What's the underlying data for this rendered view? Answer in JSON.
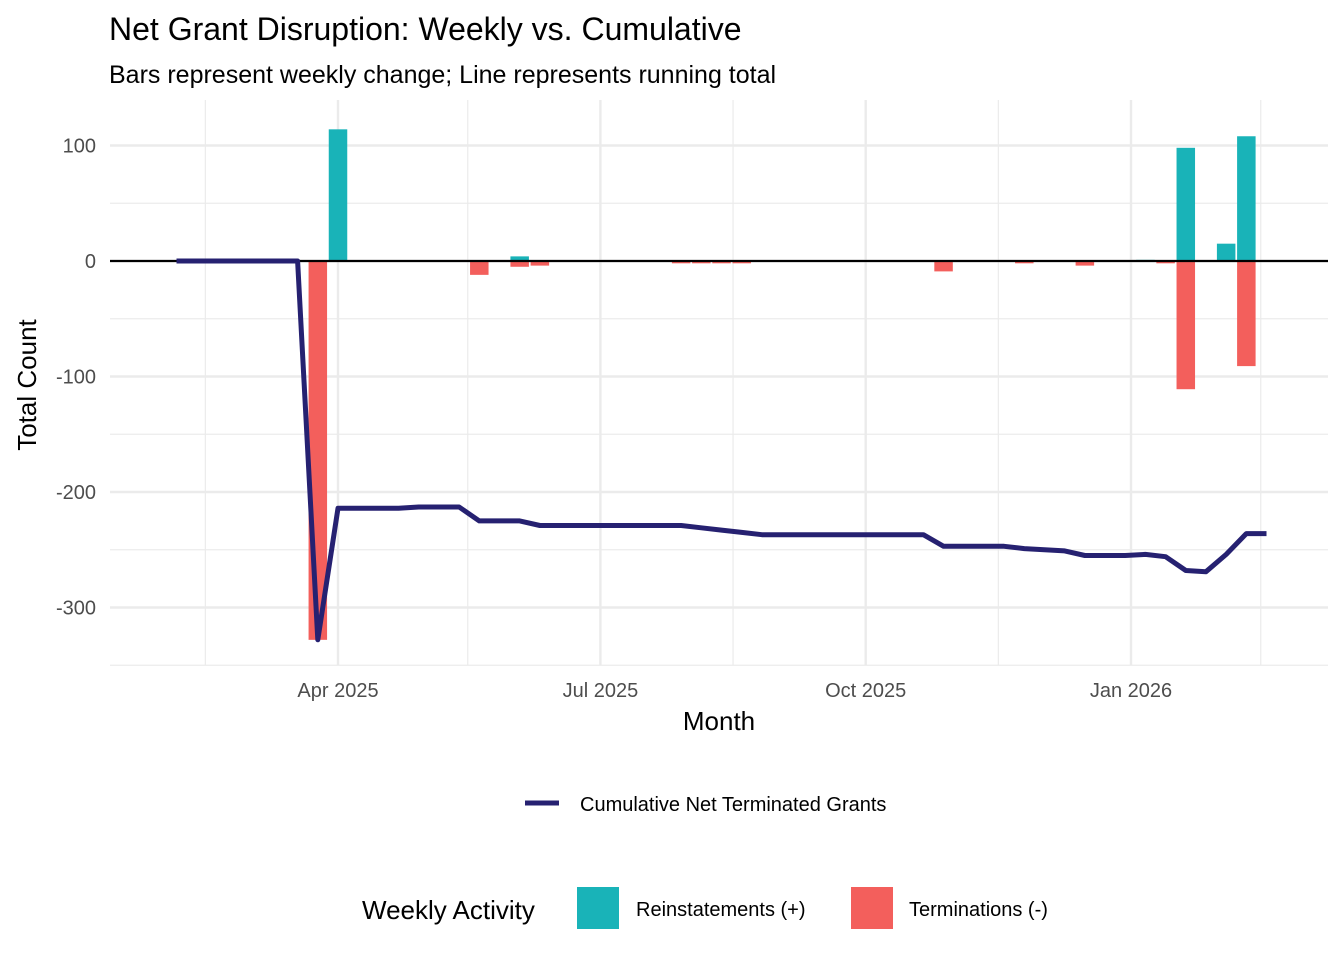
{
  "chart_data": {
    "type": "bar+line",
    "title": "Net Grant Disruption: Weekly vs. Cumulative",
    "subtitle": "Bars represent weekly change; Line represents running total",
    "xlabel": "Month",
    "ylabel": "Total Count",
    "ylim": [
      -350,
      135
    ],
    "y_ticks": [
      100,
      0,
      -100,
      -200,
      -300
    ],
    "y_tick_labels": [
      "100",
      "0",
      "-100",
      "-200",
      "-300"
    ],
    "x_range": [
      "2025-01-20",
      "2026-03-05"
    ],
    "x_ticks": [
      "2025-04-01",
      "2025-07-01",
      "2025-10-01",
      "2026-01-01"
    ],
    "x_tick_labels": [
      "Apr 2025",
      "Jul 2025",
      "Oct 2025",
      "Jan 2026"
    ],
    "x_minor_ticks": [
      "2025-02-14",
      "2025-05-16",
      "2025-08-16",
      "2025-11-16",
      "2026-02-15"
    ],
    "grid": true,
    "zero_line": true,
    "colors": {
      "reinstatements": "#19b3b8",
      "terminations": "#f35f5c",
      "cumulative": "#262171",
      "grid": "#ebebeb",
      "zero_line": "#000000"
    },
    "weeks": [
      "2025-02-04",
      "2025-02-11",
      "2025-02-18",
      "2025-02-25",
      "2025-03-04",
      "2025-03-11",
      "2025-03-18",
      "2025-03-25",
      "2025-04-01",
      "2025-04-08",
      "2025-04-15",
      "2025-04-22",
      "2025-04-29",
      "2025-05-06",
      "2025-05-13",
      "2025-05-20",
      "2025-05-27",
      "2025-06-03",
      "2025-06-10",
      "2025-06-17",
      "2025-06-24",
      "2025-07-01",
      "2025-07-08",
      "2025-07-15",
      "2025-07-22",
      "2025-07-29",
      "2025-08-05",
      "2025-08-12",
      "2025-08-19",
      "2025-08-26",
      "2025-09-02",
      "2025-09-09",
      "2025-09-16",
      "2025-09-23",
      "2025-09-30",
      "2025-10-07",
      "2025-10-14",
      "2025-10-21",
      "2025-10-28",
      "2025-11-04",
      "2025-11-11",
      "2025-11-18",
      "2025-11-25",
      "2025-12-02",
      "2025-12-09",
      "2025-12-16",
      "2025-12-23",
      "2025-12-30",
      "2026-01-06",
      "2026-01-13",
      "2026-01-20",
      "2026-01-27",
      "2026-02-03",
      "2026-02-10",
      "2026-02-17"
    ],
    "series": [
      {
        "name": "Reinstatements (+)",
        "type": "bar",
        "points": [
          {
            "week": "2025-04-01",
            "value": 114
          },
          {
            "week": "2025-06-03",
            "value": 4
          },
          {
            "week": "2026-01-06",
            "value": 1
          },
          {
            "week": "2026-01-20",
            "value": 98
          },
          {
            "week": "2026-02-03",
            "value": 15
          },
          {
            "week": "2026-02-10",
            "value": 108
          }
        ]
      },
      {
        "name": "Terminations (-)",
        "type": "bar",
        "points": [
          {
            "week": "2025-03-25",
            "value": -328
          },
          {
            "week": "2025-05-20",
            "value": -12
          },
          {
            "week": "2025-06-03",
            "value": -5
          },
          {
            "week": "2025-06-10",
            "value": -4
          },
          {
            "week": "2025-07-29",
            "value": -2
          },
          {
            "week": "2025-08-05",
            "value": -2
          },
          {
            "week": "2025-08-12",
            "value": -2
          },
          {
            "week": "2025-08-19",
            "value": -2
          },
          {
            "week": "2025-10-28",
            "value": -9
          },
          {
            "week": "2025-11-25",
            "value": -2
          },
          {
            "week": "2025-12-16",
            "value": -4
          },
          {
            "week": "2026-01-13",
            "value": -2
          },
          {
            "week": "2026-01-20",
            "value": -111
          },
          {
            "week": "2026-02-10",
            "value": -91
          }
        ]
      },
      {
        "name": "Cumulative Net Terminated Grants",
        "type": "line",
        "values": [
          0,
          0,
          0,
          0,
          0,
          0,
          0,
          -328,
          -214,
          -214,
          -214,
          -214,
          -213,
          -213,
          -213,
          -225,
          -225,
          -225,
          -229,
          -229,
          -229,
          -229,
          -229,
          -229,
          -229,
          -229,
          -231,
          -233,
          -235,
          -237,
          -237,
          -237,
          -237,
          -237,
          -237,
          -237,
          -237,
          -237,
          -247,
          -247,
          -247,
          -247,
          -249,
          -250,
          -251,
          -255,
          -255,
          -255,
          -254,
          -256,
          -268,
          -269,
          -254,
          -236,
          -236
        ]
      }
    ],
    "legend": {
      "placement": "bottom",
      "line_legend": {
        "label": "Cumulative Net Terminated Grants"
      },
      "fill_legend": {
        "title": "Weekly Activity",
        "items": [
          {
            "label": "Reinstatements (+)",
            "color": "#19b3b8"
          },
          {
            "label": "Terminations (-)",
            "color": "#f35f5c"
          }
        ]
      }
    }
  }
}
